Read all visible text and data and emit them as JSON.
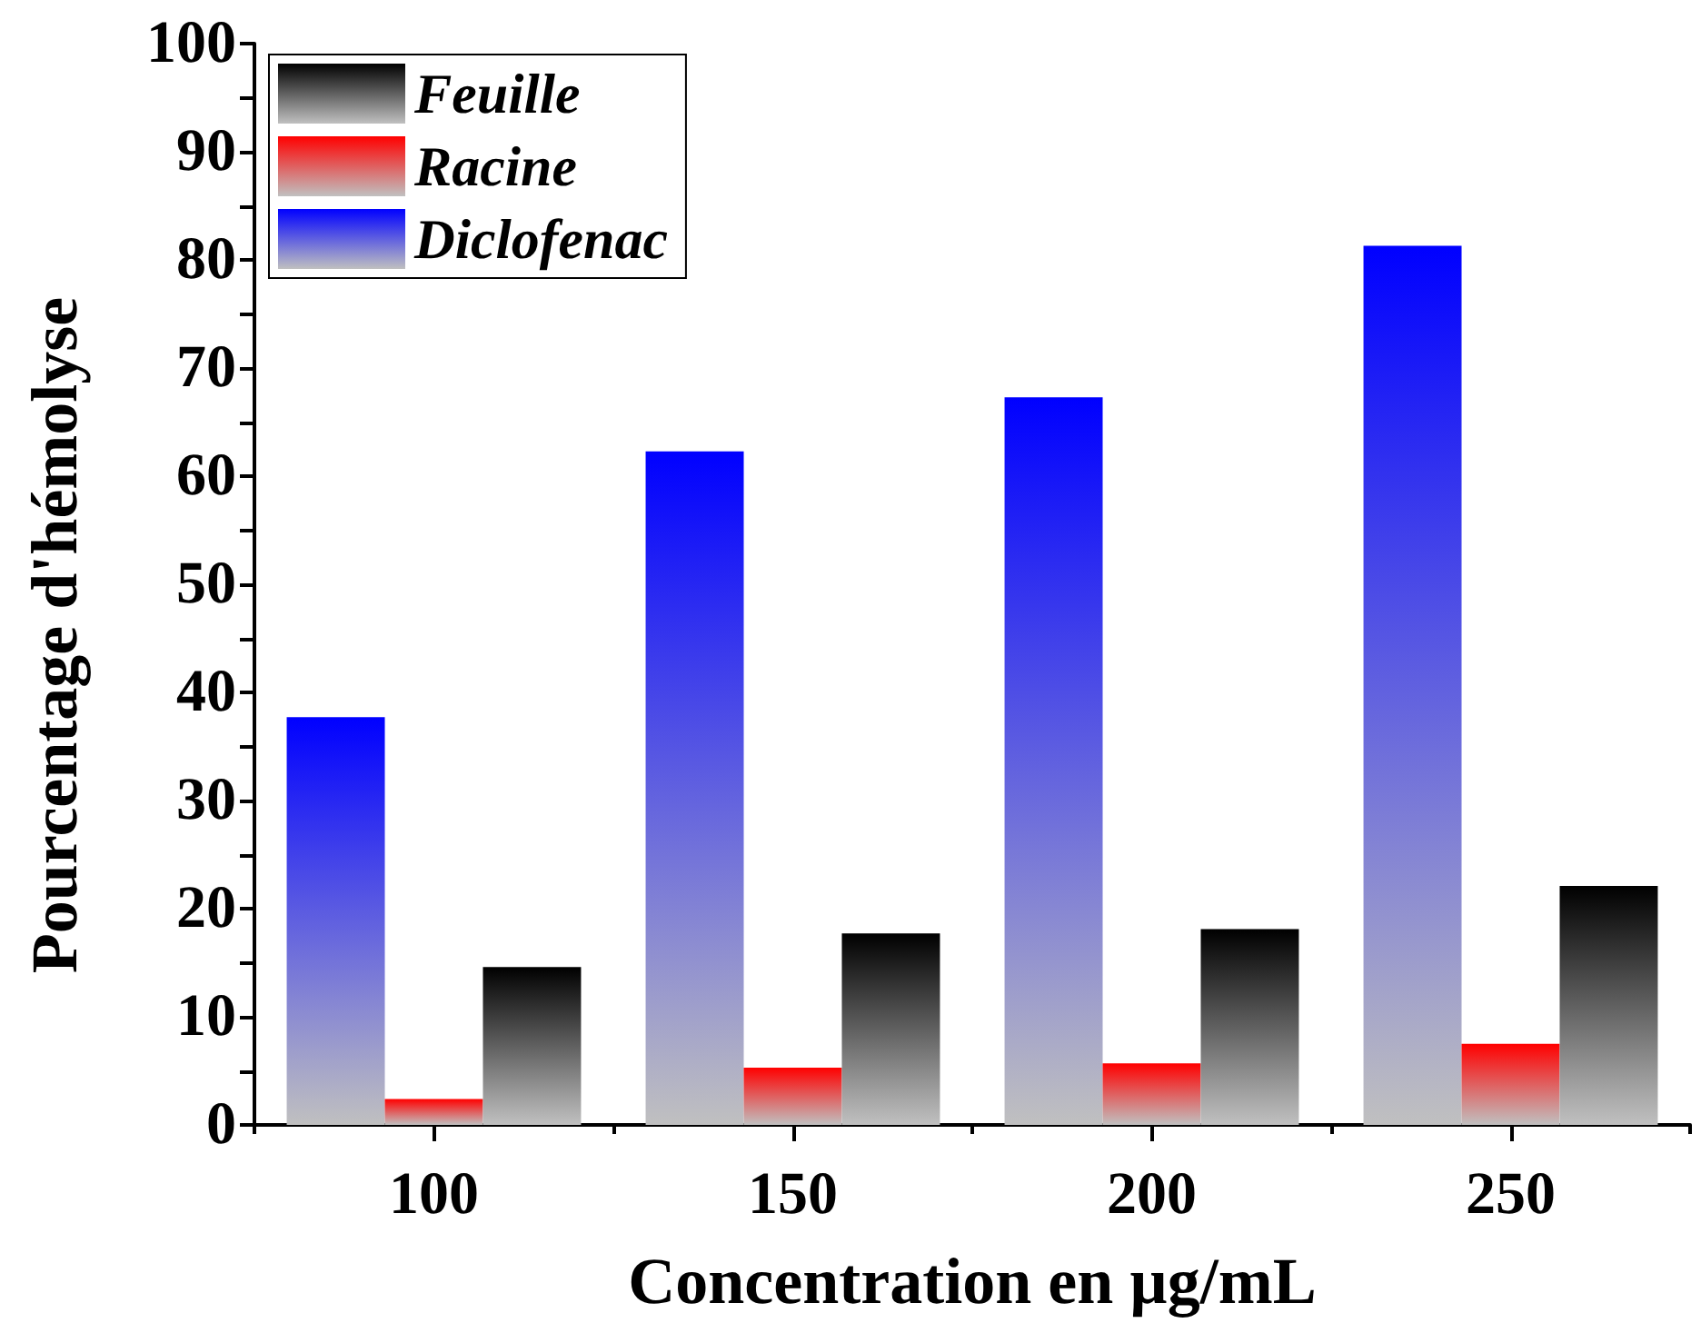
{
  "chart_data": {
    "type": "bar",
    "xlabel": "Concentration en µg/mL",
    "ylabel": "Pourcentage d'hémolyse",
    "categories": [
      "100",
      "150",
      "200",
      "250"
    ],
    "series": [
      {
        "name": "Diclofenac",
        "color": "#0000ff",
        "values": [
          37.7,
          62.3,
          67.3,
          81.3
        ]
      },
      {
        "name": "Racine",
        "color": "#ff0000",
        "values": [
          2.4,
          5.3,
          5.7,
          7.5
        ]
      },
      {
        "name": "Feuille",
        "color": "#000000",
        "values": [
          14.6,
          17.7,
          18.1,
          22.1
        ]
      }
    ],
    "ylim": [
      0,
      100
    ],
    "yticks": [
      0,
      {
        "value": 5,
        "label": null
      },
      10,
      {
        "value": 15,
        "label": null
      },
      20,
      {
        "value": 25,
        "label": null
      },
      30,
      {
        "value": 35,
        "label": null
      },
      40,
      {
        "value": 45,
        "label": null
      },
      50,
      {
        "value": 55,
        "label": null
      },
      60,
      {
        "value": 65,
        "label": null
      },
      70,
      {
        "value": 75,
        "label": null
      },
      80,
      {
        "value": 85,
        "label": null
      },
      90,
      {
        "value": 95,
        "label": null
      },
      100
    ],
    "grid": false,
    "legend": "top left"
  }
}
